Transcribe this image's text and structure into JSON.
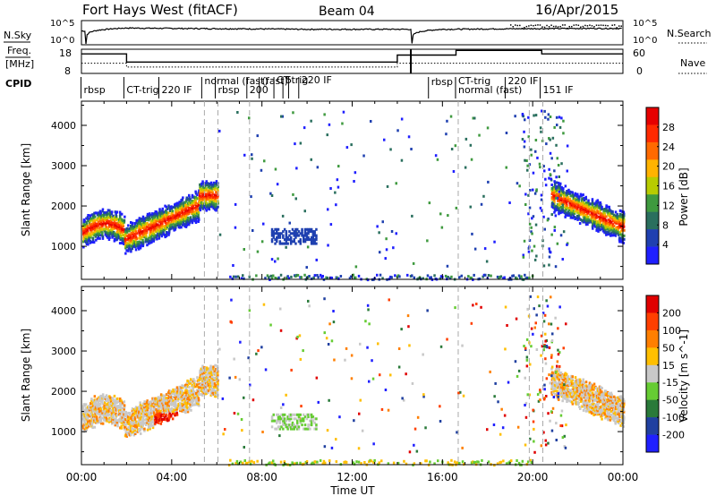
{
  "header": {
    "title": "Fort Hays West (fitACF)",
    "beam": "Beam 04",
    "date": "16/Apr/2015"
  },
  "noise_panel": {
    "left_label": "N.Sky",
    "right_label": "N.Search",
    "left_ticks": [
      "10^5",
      "10^0"
    ],
    "right_ticks": [
      "10^5",
      "10^0"
    ]
  },
  "freq_panel": {
    "left_label_1": "Freq.",
    "left_label_2": "[MHz]",
    "right_label": "Nave",
    "left_ticks": [
      "18",
      "8"
    ],
    "right_ticks": [
      "60",
      "0"
    ]
  },
  "cpid": {
    "label": "CPID",
    "segments": [
      {
        "text": "rbsp",
        "t": 0.1
      },
      {
        "text": "CT-trig",
        "t": 2.0
      },
      {
        "text": "220 IF",
        "t": 3.55
      },
      {
        "text": "normal (fast)",
        "t": 5.45
      },
      {
        "text": "rbsp",
        "t": 6.05
      },
      {
        "text": "200",
        "t": 7.45
      },
      {
        "text": "(fast)",
        "t": 8.0
      },
      {
        "text": "CT",
        "t": 8.65
      },
      {
        "text": "5",
        "t": 9.05
      },
      {
        "text": "trig",
        "t": 9.3
      },
      {
        "text": "220 IF",
        "t": 9.75
      },
      {
        "text": "rbsp",
        "t": 15.5
      },
      {
        "text": "CT-trig",
        "t": 16.7
      },
      {
        "text": "220 IF",
        "t": 18.9
      },
      {
        "text": "normal (fast)",
        "t": 16.7
      },
      {
        "text": "151 IF",
        "t": 20.45
      }
    ]
  },
  "axes": {
    "ylabel": "Slant Range [km]",
    "xlabel": "Time UT",
    "xticks": [
      "00:00",
      "04:00",
      "08:00",
      "12:00",
      "16:00",
      "20:00",
      "00:00"
    ],
    "yticks": [
      "1000",
      "2000",
      "3000",
      "4000"
    ]
  },
  "power_scale": {
    "label": "Power [dB]",
    "ticks": [
      "4",
      "8",
      "12",
      "16",
      "20",
      "24",
      "28"
    ],
    "colors": [
      "#1f1fff",
      "#1f40b0",
      "#2a6f5e",
      "#3f9a3f",
      "#b8cc00",
      "#ffb300",
      "#ff6a00",
      "#ff2a00",
      "#e60000"
    ]
  },
  "velocity_scale": {
    "label": "Velocity [m s^-1]",
    "ticks": [
      "200",
      "100",
      "50",
      "15",
      "-15",
      "-50",
      "-100",
      "-200"
    ],
    "colors": [
      "#1f1fff",
      "#2040a0",
      "#2a7a3a",
      "#66cc33",
      "#c8c8c8",
      "#ffbf00",
      "#ff7f00",
      "#ff3f00",
      "#e00000"
    ]
  },
  "chart_data": [
    {
      "type": "line",
      "title": "Fort Hays West (fitACF)",
      "xlabel": "",
      "ylabel": "N.Sky",
      "xlim": [
        0,
        24
      ],
      "series": [
        {
          "name": "N.Sky",
          "x": [
            0,
            0.15,
            0.2,
            2,
            4,
            6,
            8,
            10,
            12,
            14.6,
            14.65,
            16,
            18,
            20,
            22,
            24
          ],
          "y": [
            1000,
            1000,
            1,
            5000,
            4000,
            3500,
            3000,
            2500,
            2500,
            2500,
            1,
            2500,
            3000,
            3500,
            4000,
            4000
          ]
        },
        {
          "name": "N.Search",
          "x": [
            0,
            4,
            8,
            12,
            16,
            20,
            24
          ],
          "y": [
            10,
            10,
            10,
            10,
            10,
            20,
            20
          ]
        }
      ]
    },
    {
      "type": "line",
      "xlabel": "",
      "ylabel": "Freq. [MHz]",
      "xlim": [
        0,
        24
      ],
      "series": [
        {
          "name": "Freq.",
          "x": [
            0,
            2,
            2,
            14,
            14,
            16.6,
            16.6,
            20.4,
            20.4,
            24
          ],
          "y": [
            16,
            16,
            12.5,
            12.5,
            15.5,
            15.5,
            17.5,
            17.5,
            16,
            16
          ]
        },
        {
          "name": "Nave",
          "x": [
            0,
            2,
            2,
            14,
            14,
            24
          ],
          "y": [
            24,
            24,
            14,
            14,
            24,
            24
          ]
        }
      ]
    },
    {
      "type": "heatmap",
      "xlabel": "Time UT",
      "ylabel": "Slant Range [km]",
      "xlim": [
        0,
        24
      ],
      "ylim": [
        180,
        4600
      ],
      "colorbar_label": "Power [dB]",
      "colorbar_ticks": [
        4,
        8,
        12,
        16,
        20,
        24,
        28
      ]
    },
    {
      "type": "heatmap",
      "xlabel": "Time UT",
      "ylabel": "Slant Range [km]",
      "xlim": [
        0,
        24
      ],
      "ylim": [
        180,
        4600
      ],
      "colorbar_label": "Velocity [m s^-1]",
      "colorbar_ticks": [
        200,
        100,
        50,
        15,
        -15,
        -50,
        -100,
        -200
      ]
    }
  ]
}
